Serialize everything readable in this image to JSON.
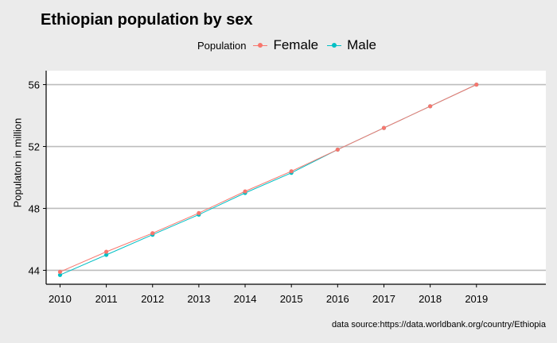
{
  "chart_data": {
    "type": "line",
    "title": "Ethiopian population by sex",
    "xlabel": "",
    "ylabel": "Populaton in million",
    "x": [
      2010,
      2011,
      2012,
      2013,
      2014,
      2015,
      2016,
      2017,
      2018,
      2019
    ],
    "x_tick_labels": [
      "2010",
      "2011",
      "2012",
      "2013",
      "2014",
      "2015",
      "2016",
      "2017",
      "2018",
      "2019"
    ],
    "xlim": [
      2009.7,
      2020.5
    ],
    "ylim": [
      43.1,
      56.9
    ],
    "y_ticks": [
      44,
      48,
      52,
      56
    ],
    "y_tick_labels": [
      "44",
      "48",
      "52",
      "56"
    ],
    "grid": "horizontal major lines",
    "legend": {
      "title": "Population",
      "position": "top"
    },
    "series": [
      {
        "name": "Female",
        "color": "#f8766d",
        "values": [
          43.9,
          45.2,
          46.4,
          47.7,
          49.1,
          50.4,
          51.8,
          53.2,
          54.6,
          56.0
        ]
      },
      {
        "name": "Male",
        "color": "#00bfc4",
        "values": [
          43.7,
          45.0,
          46.3,
          47.6,
          49.0,
          50.3,
          51.8,
          53.2,
          54.6,
          56.0
        ]
      }
    ]
  },
  "source_note": "data source:https://data.worldbank.org/country/Ethiopia"
}
